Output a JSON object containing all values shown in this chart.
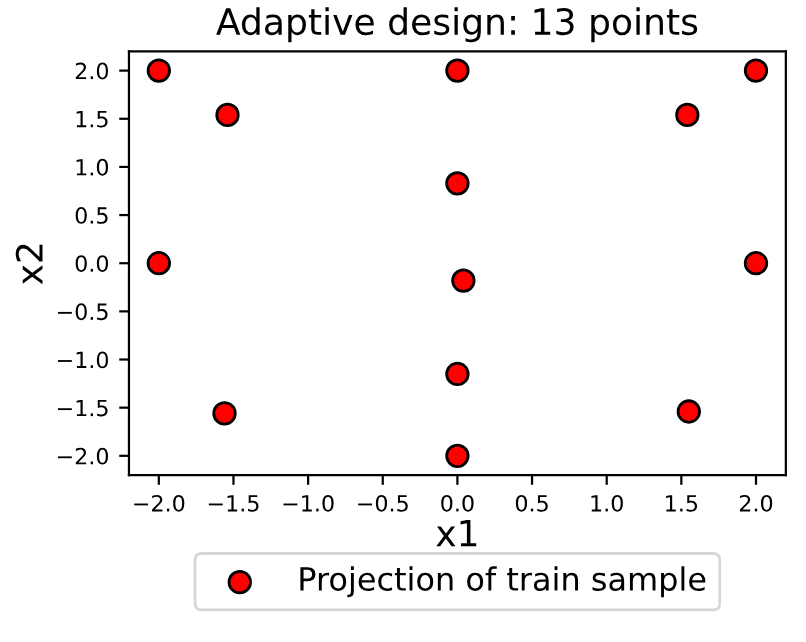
{
  "chart_data": {
    "type": "scatter",
    "title": "Adaptive design: 13 points",
    "xlabel": "x1",
    "ylabel": "x2",
    "series": [
      {
        "name": "Projection of train sample",
        "color": "#ff0000",
        "x": [
          -2,
          0,
          2,
          -1.54,
          1.54,
          0,
          -2,
          2,
          0.04,
          0,
          -1.56,
          1.55,
          0
        ],
        "values": [
          2,
          2,
          2,
          1.54,
          1.54,
          0.83,
          0,
          0,
          -0.18,
          -1.15,
          -1.56,
          -1.54,
          -2
        ]
      }
    ],
    "xlim": [
      -2.2,
      2.2
    ],
    "ylim": [
      -2.2,
      2.2
    ],
    "xticks": [
      {
        "value": -2,
        "label": "−2.0"
      },
      {
        "value": -1.5,
        "label": "−1.5"
      },
      {
        "value": -1,
        "label": "−1.0"
      },
      {
        "value": -0.5,
        "label": "−0.5"
      },
      {
        "value": 0,
        "label": "0.0"
      },
      {
        "value": 0.5,
        "label": "0.5"
      },
      {
        "value": 1,
        "label": "1.0"
      },
      {
        "value": 1.5,
        "label": "1.5"
      },
      {
        "value": 2,
        "label": "2.0"
      }
    ],
    "yticks": [
      {
        "value": -2,
        "label": "−2.0"
      },
      {
        "value": -1.5,
        "label": "−1.5"
      },
      {
        "value": -1,
        "label": "−1.0"
      },
      {
        "value": -0.5,
        "label": "−0.5"
      },
      {
        "value": 0,
        "label": "0.0"
      },
      {
        "value": 0.5,
        "label": "0.5"
      },
      {
        "value": 1,
        "label": "1.0"
      },
      {
        "value": 1.5,
        "label": "1.5"
      },
      {
        "value": 2,
        "label": "2.0"
      }
    ],
    "marker": "circle",
    "legend": "bottom",
    "grid": false
  }
}
